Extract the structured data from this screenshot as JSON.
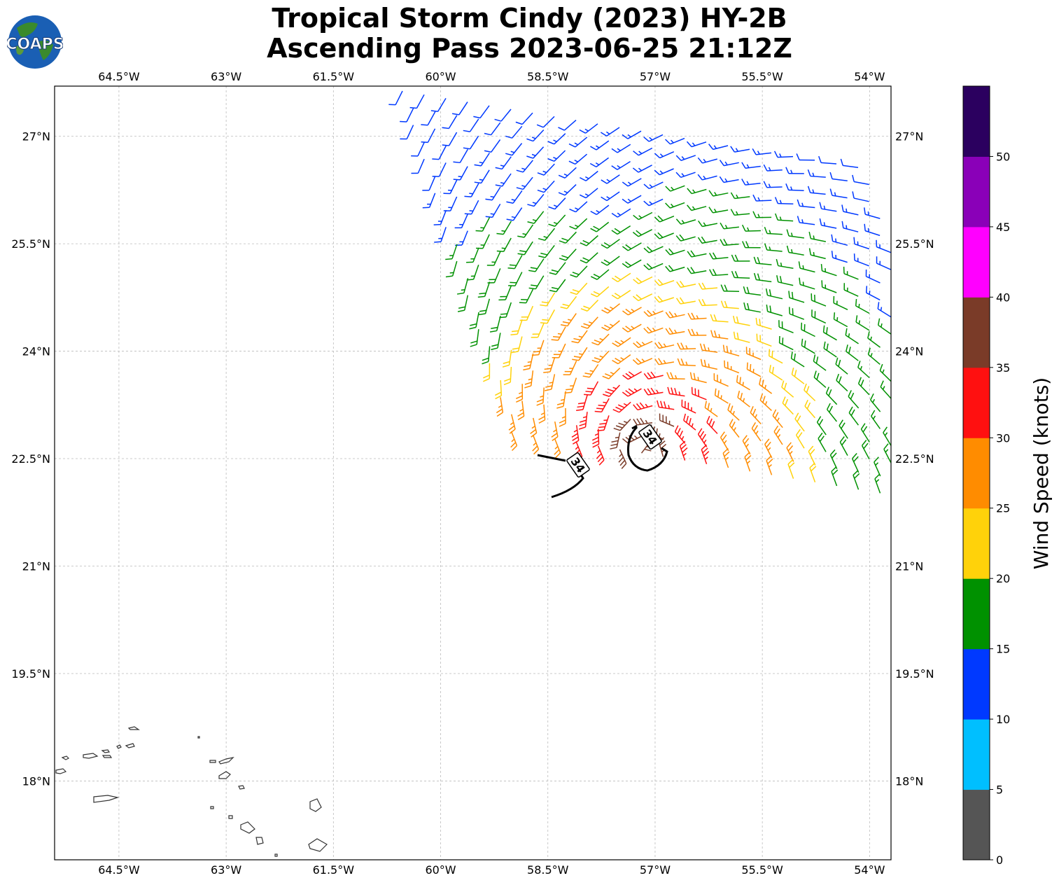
{
  "title": {
    "line1": "Tropical Storm Cindy (2023) HY-2B",
    "line2": "Ascending Pass 2023-06-25 21:12Z"
  },
  "logo": {
    "text": "COAPS",
    "icon": "globe-logo"
  },
  "map": {
    "lon_range": [
      -65.4,
      -53.7
    ],
    "lat_range": [
      16.9,
      27.7
    ],
    "lon_ticks": [
      "64.5°W",
      "63°W",
      "61.5°W",
      "60°W",
      "58.5°W",
      "57°W",
      "55.5°W",
      "54°W"
    ],
    "lon_tick_values": [
      -64.5,
      -63,
      -61.5,
      -60,
      -58.5,
      -57,
      -55.5,
      -54
    ],
    "lat_ticks": [
      "27°N",
      "25.5°N",
      "24°N",
      "22.5°N",
      "21°N",
      "19.5°N",
      "18°N"
    ],
    "lat_tick_values": [
      27,
      25.5,
      24,
      22.5,
      21,
      19.5,
      18
    ],
    "grid": true,
    "contour_label": "34",
    "contour_labels": [
      "34",
      "34"
    ]
  },
  "colorbar": {
    "label": "Wind Speed (knots)",
    "ticks": [
      "0",
      "5",
      "10",
      "15",
      "20",
      "25",
      "30",
      "35",
      "40",
      "45",
      "50"
    ],
    "colors": [
      "#555555",
      "#00bfff",
      "#0039ff",
      "#009100",
      "#ffd20a",
      "#ff8c00",
      "#ff1010",
      "#7a3b28",
      "#ff00ff",
      "#8a00b8",
      "#2b005f"
    ]
  },
  "colors": {
    "contour": "#000000",
    "coast": "#333333",
    "grid": "#bbbbbb"
  }
}
